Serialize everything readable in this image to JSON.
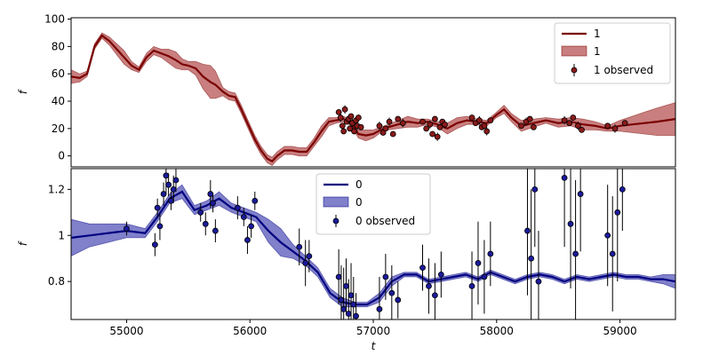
{
  "chart_data": [
    {
      "type": "line",
      "panel": "top",
      "ylabel": "f",
      "xlabel": "",
      "xlim": [
        54550,
        59450
      ],
      "ylim": [
        -8,
        101
      ],
      "yticks": [
        0,
        20,
        40,
        60,
        80,
        100
      ],
      "xticks": [],
      "colors": {
        "line": "#7a0000",
        "band": "#a52a2a",
        "point": "#8b1a1a"
      },
      "legend": {
        "position": "top-right",
        "entries": [
          "1",
          "1",
          "1 observed"
        ]
      },
      "model_x": [
        54550,
        54620,
        54680,
        54740,
        54800,
        54860,
        54920,
        54980,
        55040,
        55100,
        55160,
        55220,
        55280,
        55340,
        55400,
        55450,
        55500,
        55560,
        55620,
        55680,
        55720,
        55780,
        55830,
        55880,
        55930,
        55980,
        56040,
        56090,
        56140,
        56180,
        56220,
        56280,
        56340,
        56400,
        56460,
        56520,
        56580,
        56640,
        56700,
        56760,
        56820,
        56880,
        56940,
        57000,
        57060,
        57120,
        57200,
        57280,
        57360,
        57440,
        57520,
        57600,
        57680,
        57760,
        57840,
        57920,
        58000,
        58060,
        58120,
        58200,
        58300,
        58400,
        58500,
        58600,
        58700,
        58800,
        58900,
        59000,
        59100,
        59200,
        59300,
        59450
      ],
      "model_y": [
        58,
        57,
        60,
        80,
        88,
        84,
        78,
        72,
        66,
        63,
        72,
        77,
        75,
        73,
        70,
        67,
        66,
        64,
        58,
        54,
        52,
        47,
        44,
        43,
        34,
        24,
        12,
        4,
        -2,
        -4,
        0,
        4,
        4,
        3,
        3,
        10,
        18,
        25,
        26,
        27,
        24,
        16,
        15,
        16,
        19,
        21,
        23,
        25,
        24,
        25,
        23,
        20,
        24,
        26,
        25,
        24,
        30,
        34,
        28,
        22,
        24,
        26,
        24,
        25,
        23,
        22,
        20,
        22,
        23,
        24,
        25,
        27
      ],
      "band_halfwidth": [
        5,
        3,
        2,
        2,
        2,
        3,
        4,
        5,
        3,
        2,
        3,
        3,
        3,
        5,
        6,
        4,
        3,
        5,
        9,
        12,
        10,
        3,
        3,
        3,
        3,
        3,
        3,
        3,
        3,
        3,
        3,
        3,
        3,
        3,
        3,
        3,
        4,
        3,
        2,
        2,
        2,
        3,
        4,
        3,
        2,
        2,
        3,
        4,
        3,
        2,
        2,
        4,
        4,
        3,
        2,
        2,
        2,
        3,
        3,
        4,
        3,
        2,
        3,
        3,
        4,
        3,
        2,
        4,
        6,
        8,
        10,
        12
      ],
      "obs_x": [
        56720,
        56735,
        56750,
        56760,
        56770,
        56785,
        56800,
        56810,
        56820,
        56830,
        56845,
        56860,
        56870,
        56880,
        56900,
        57050,
        57080,
        57100,
        57130,
        57160,
        57200,
        57240,
        57400,
        57430,
        57460,
        57480,
        57500,
        57520,
        57540,
        57560,
        57580,
        57800,
        57830,
        57860,
        57880,
        57900,
        57920,
        57950,
        58200,
        58240,
        58270,
        58300,
        58550,
        58590,
        58620,
        58660,
        58690,
        58900,
        58960,
        59040
      ],
      "obs_y": [
        32,
        28,
        22,
        18,
        34,
        25,
        27,
        20,
        29,
        24,
        18,
        26,
        22,
        28,
        21,
        22,
        17,
        20,
        25,
        16,
        27,
        24,
        25,
        20,
        23,
        16,
        27,
        14,
        21,
        25,
        23,
        28,
        24,
        26,
        21,
        22,
        18,
        26,
        22,
        25,
        27,
        21,
        26,
        24,
        28,
        22,
        19,
        22,
        20,
        24
      ],
      "obs_err": [
        2,
        3,
        2,
        2,
        3,
        2,
        3,
        2,
        2,
        3,
        2,
        2,
        3,
        2,
        2,
        3,
        2,
        2,
        3,
        2,
        2,
        3,
        2,
        2,
        3,
        2,
        2,
        3,
        2,
        2,
        3,
        2,
        2,
        3,
        2,
        2,
        3,
        2,
        2,
        3,
        2,
        2,
        3,
        2,
        2,
        3,
        2,
        2,
        3,
        2
      ]
    },
    {
      "type": "line",
      "panel": "bottom",
      "ylabel": "f",
      "xlabel": "t",
      "xlim": [
        54550,
        59450
      ],
      "ylim": [
        0.635,
        1.29
      ],
      "yticks": [
        0.8,
        1.0,
        1.2
      ],
      "xticks": [
        55000,
        56000,
        57000,
        58000,
        59000
      ],
      "colors": {
        "line": "#000080",
        "band": "#2b2ba8",
        "point": "#1a1a9c"
      },
      "legend": {
        "position": "top-center",
        "entries": [
          "0",
          "0",
          "0 observed"
        ]
      },
      "model_x": [
        54550,
        54700,
        54850,
        55000,
        55150,
        55250,
        55350,
        55450,
        55550,
        55650,
        55750,
        55850,
        55950,
        56050,
        56150,
        56250,
        56350,
        56450,
        56550,
        56650,
        56750,
        56850,
        56950,
        57050,
        57150,
        57250,
        57350,
        57450,
        57550,
        57650,
        57750,
        57850,
        57950,
        58050,
        58150,
        58250,
        58350,
        58450,
        58550,
        58650,
        58750,
        58850,
        58950,
        59050,
        59150,
        59250,
        59350,
        59450
      ],
      "model_y": [
        0.99,
        1.0,
        1.01,
        1.02,
        1.01,
        1.08,
        1.16,
        1.19,
        1.11,
        1.13,
        1.16,
        1.12,
        1.1,
        1.08,
        1.02,
        0.97,
        0.93,
        0.89,
        0.84,
        0.75,
        0.71,
        0.7,
        0.7,
        0.73,
        0.8,
        0.83,
        0.83,
        0.8,
        0.81,
        0.82,
        0.83,
        0.81,
        0.84,
        0.82,
        0.8,
        0.82,
        0.83,
        0.82,
        0.8,
        0.82,
        0.81,
        0.82,
        0.83,
        0.82,
        0.82,
        0.81,
        0.81,
        0.8
      ],
      "band_halfwidth": [
        0.08,
        0.05,
        0.04,
        0.03,
        0.02,
        0.02,
        0.02,
        0.03,
        0.02,
        0.02,
        0.03,
        0.02,
        0.02,
        0.02,
        0.05,
        0.06,
        0.03,
        0.02,
        0.02,
        0.02,
        0.02,
        0.01,
        0.01,
        0.02,
        0.02,
        0.01,
        0.01,
        0.01,
        0.01,
        0.01,
        0.01,
        0.01,
        0.01,
        0.01,
        0.01,
        0.01,
        0.01,
        0.01,
        0.01,
        0.01,
        0.01,
        0.01,
        0.01,
        0.01,
        0.01,
        0.01,
        0.02,
        0.03
      ],
      "obs_x": [
        55000,
        55230,
        55250,
        55270,
        55300,
        55320,
        55340,
        55360,
        55380,
        55400,
        55600,
        55640,
        55680,
        55700,
        55720,
        55900,
        55950,
        55980,
        56010,
        56040,
        56400,
        56450,
        56480,
        56720,
        56740,
        56760,
        56780,
        56800,
        56820,
        56840,
        56860,
        57050,
        57100,
        57150,
        57200,
        57400,
        57450,
        57500,
        57550,
        57800,
        57850,
        57900,
        57950,
        58250,
        58280,
        58310,
        58340,
        58550,
        58600,
        58640,
        58680,
        58900,
        58940,
        58980,
        59020
      ],
      "obs_y": [
        1.03,
        0.96,
        1.12,
        1.04,
        1.18,
        1.26,
        1.22,
        1.15,
        1.2,
        1.24,
        1.1,
        1.05,
        1.18,
        1.14,
        1.02,
        1.12,
        1.08,
        0.98,
        1.04,
        1.15,
        0.95,
        0.88,
        0.91,
        0.82,
        0.72,
        0.68,
        0.78,
        0.66,
        0.74,
        0.7,
        0.65,
        0.68,
        0.82,
        0.75,
        0.72,
        0.86,
        0.78,
        0.74,
        0.83,
        0.78,
        0.88,
        0.82,
        0.92,
        1.02,
        0.9,
        1.2,
        0.8,
        1.25,
        1.05,
        0.92,
        1.18,
        1.0,
        0.92,
        1.1,
        1.2
      ],
      "obs_err": [
        0.03,
        0.05,
        0.04,
        0.06,
        0.05,
        0.08,
        0.05,
        0.04,
        0.06,
        0.05,
        0.04,
        0.05,
        0.06,
        0.04,
        0.05,
        0.05,
        0.04,
        0.06,
        0.05,
        0.04,
        0.08,
        0.1,
        0.07,
        0.12,
        0.15,
        0.18,
        0.12,
        0.15,
        0.14,
        0.12,
        0.1,
        0.14,
        0.1,
        0.12,
        0.08,
        0.1,
        0.12,
        0.14,
        0.1,
        0.15,
        0.18,
        0.16,
        0.14,
        0.28,
        0.3,
        0.25,
        0.22,
        0.3,
        0.28,
        0.32,
        0.25,
        0.22,
        0.25,
        0.3,
        0.18
      ]
    }
  ]
}
